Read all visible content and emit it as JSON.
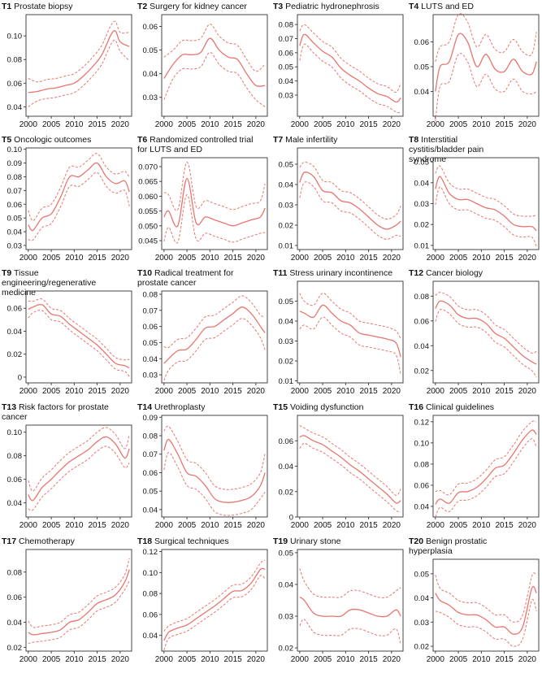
{
  "colors": {
    "line": "#e8756e",
    "axis": "#333333",
    "text": "#111111"
  },
  "chart_data": [
    {
      "code": "T1",
      "title": "Prostate biopsy",
      "type": "line",
      "x": [
        2000,
        2002,
        2004,
        2006,
        2008,
        2010,
        2012,
        2014,
        2016,
        2018,
        2019,
        2020,
        2022
      ],
      "mean": [
        0.052,
        0.053,
        0.055,
        0.056,
        0.058,
        0.06,
        0.066,
        0.074,
        0.084,
        0.101,
        0.104,
        0.095,
        0.091
      ],
      "band": 0.008,
      "yticks": [
        0.04,
        0.06,
        0.08,
        0.1
      ],
      "xticks": [
        2000,
        2005,
        2010,
        2015,
        2020
      ],
      "ylim": [
        0.032,
        0.118
      ]
    },
    {
      "code": "T2",
      "title": "Surgery for kidney cancer",
      "type": "line",
      "x": [
        2000,
        2002,
        2004,
        2006,
        2008,
        2010,
        2012,
        2014,
        2016,
        2018,
        2020,
        2022
      ],
      "mean": [
        0.038,
        0.044,
        0.048,
        0.048,
        0.049,
        0.055,
        0.05,
        0.047,
        0.046,
        0.04,
        0.035,
        0.035
      ],
      "band": 0.006,
      "yticks": [
        0.03,
        0.04,
        0.05,
        0.06
      ],
      "xticks": [
        2000,
        2005,
        2010,
        2015,
        2020
      ],
      "ylim": [
        0.022,
        0.065
      ]
    },
    {
      "code": "T3",
      "title": "Pediatric hydronephrosis",
      "type": "line",
      "x": [
        2000,
        2001,
        2003,
        2005,
        2007,
        2009,
        2011,
        2013,
        2015,
        2017,
        2019,
        2021,
        2022
      ],
      "mean": [
        0.065,
        0.073,
        0.067,
        0.061,
        0.057,
        0.049,
        0.044,
        0.04,
        0.035,
        0.031,
        0.029,
        0.025,
        0.028
      ],
      "band": 0.007,
      "yticks": [
        0.03,
        0.04,
        0.05,
        0.06,
        0.07,
        0.08
      ],
      "xticks": [
        2000,
        2005,
        2010,
        2015,
        2020
      ],
      "ylim": [
        0.015,
        0.087
      ]
    },
    {
      "code": "T4",
      "title": "LUTS and ED",
      "type": "line",
      "x": [
        2000,
        2001,
        2003,
        2005,
        2007,
        2009,
        2011,
        2013,
        2015,
        2017,
        2019,
        2021,
        2022
      ],
      "mean": [
        0.04,
        0.05,
        0.052,
        0.063,
        0.06,
        0.05,
        0.055,
        0.049,
        0.048,
        0.053,
        0.048,
        0.047,
        0.052
      ],
      "band": 0.008,
      "yticks": [
        0.04,
        0.05,
        0.06
      ],
      "xticks": [
        2000,
        2005,
        2010,
        2015,
        2020
      ],
      "ylim": [
        0.03,
        0.071
      ]
    },
    {
      "code": "T5",
      "title": "Oncologic outcomes",
      "type": "line",
      "x": [
        2000,
        2001,
        2003,
        2005,
        2007,
        2009,
        2011,
        2013,
        2015,
        2017,
        2019,
        2021,
        2022
      ],
      "mean": [
        0.045,
        0.041,
        0.05,
        0.053,
        0.065,
        0.08,
        0.08,
        0.085,
        0.09,
        0.08,
        0.075,
        0.077,
        0.069
      ],
      "band": 0.007,
      "yticks": [
        0.03,
        0.04,
        0.05,
        0.06,
        0.07,
        0.08,
        0.09,
        0.1
      ],
      "xticks": [
        2000,
        2005,
        2010,
        2015,
        2020
      ],
      "ylim": [
        0.027,
        0.101
      ]
    },
    {
      "code": "T6",
      "title": "Randomized controlled trial for LUTS and ED",
      "type": "line",
      "x": [
        2000,
        2001,
        2003,
        2005,
        2007,
        2009,
        2011,
        2013,
        2015,
        2017,
        2019,
        2021,
        2022
      ],
      "mean": [
        0.053,
        0.055,
        0.05,
        0.066,
        0.051,
        0.053,
        0.052,
        0.051,
        0.05,
        0.051,
        0.052,
        0.053,
        0.056
      ],
      "band": 0.0055,
      "yticks": [
        0.045,
        0.05,
        0.055,
        0.06,
        0.065,
        0.07
      ],
      "xticks": [
        2000,
        2005,
        2010,
        2015,
        2020
      ],
      "ylim": [
        0.042,
        0.073
      ]
    },
    {
      "code": "T7",
      "title": "Male infertility",
      "type": "line",
      "x": [
        2000,
        2001,
        2003,
        2005,
        2007,
        2009,
        2011,
        2013,
        2015,
        2017,
        2019,
        2021,
        2022
      ],
      "mean": [
        0.041,
        0.046,
        0.044,
        0.037,
        0.036,
        0.032,
        0.031,
        0.028,
        0.024,
        0.02,
        0.018,
        0.02,
        0.022
      ],
      "band": 0.005,
      "yticks": [
        0.01,
        0.02,
        0.03,
        0.04,
        0.05
      ],
      "xticks": [
        2000,
        2005,
        2010,
        2015,
        2020
      ],
      "ylim": [
        0.008,
        0.058
      ]
    },
    {
      "code": "T8",
      "title": "Interstitial cystitis/bladder pain syndrome",
      "type": "line",
      "x": [
        2000,
        2001,
        2003,
        2005,
        2007,
        2009,
        2011,
        2013,
        2015,
        2017,
        2019,
        2021,
        2022
      ],
      "mean": [
        0.037,
        0.043,
        0.035,
        0.032,
        0.032,
        0.03,
        0.028,
        0.027,
        0.024,
        0.02,
        0.019,
        0.019,
        0.017
      ],
      "band": 0.005,
      "yticks": [
        0.01,
        0.02,
        0.03,
        0.04,
        0.05
      ],
      "xticks": [
        2000,
        2005,
        2010,
        2015,
        2020
      ],
      "ylim": [
        0.008,
        0.052
      ]
    },
    {
      "code": "T9",
      "title": "Tissue engineering/regenerative medicine",
      "type": "line",
      "x": [
        2000,
        2001,
        2003,
        2005,
        2007,
        2009,
        2011,
        2013,
        2015,
        2017,
        2019,
        2021,
        2022
      ],
      "mean": [
        0.059,
        0.061,
        0.063,
        0.055,
        0.053,
        0.046,
        0.04,
        0.034,
        0.028,
        0.02,
        0.012,
        0.01,
        0.008
      ],
      "band": 0.005,
      "yticks": [
        0,
        0.02,
        0.04,
        0.06
      ],
      "xticks": [
        2000,
        2005,
        2010,
        2015,
        2020
      ],
      "ylim": [
        -0.005,
        0.075
      ]
    },
    {
      "code": "T10",
      "title": "Radical treatment for prostate cancer",
      "type": "line",
      "x": [
        2000,
        2001,
        2003,
        2005,
        2007,
        2009,
        2011,
        2013,
        2015,
        2017,
        2019,
        2021,
        2022
      ],
      "mean": [
        0.037,
        0.04,
        0.045,
        0.046,
        0.052,
        0.059,
        0.06,
        0.064,
        0.068,
        0.072,
        0.068,
        0.06,
        0.056
      ],
      "band": 0.007,
      "yticks": [
        0.03,
        0.04,
        0.05,
        0.06,
        0.07,
        0.08
      ],
      "xticks": [
        2000,
        2005,
        2010,
        2015,
        2020
      ],
      "ylim": [
        0.025,
        0.082
      ]
    },
    {
      "code": "T11",
      "title": "Stress urinary incontinence",
      "type": "line",
      "x": [
        2000,
        2001,
        2003,
        2005,
        2007,
        2009,
        2011,
        2013,
        2015,
        2017,
        2019,
        2021,
        2022
      ],
      "mean": [
        0.045,
        0.044,
        0.042,
        0.048,
        0.044,
        0.04,
        0.038,
        0.034,
        0.033,
        0.032,
        0.031,
        0.029,
        0.022
      ],
      "band": 0.006,
      "yticks": [
        0.01,
        0.02,
        0.03,
        0.04,
        0.05
      ],
      "xticks": [
        2000,
        2005,
        2010,
        2015,
        2020
      ],
      "ylim": [
        0.009,
        0.06
      ]
    },
    {
      "code": "T12",
      "title": "Cancer biology",
      "type": "line",
      "x": [
        2000,
        2001,
        2003,
        2005,
        2007,
        2009,
        2011,
        2013,
        2015,
        2017,
        2019,
        2021,
        2022
      ],
      "mean": [
        0.07,
        0.076,
        0.073,
        0.065,
        0.062,
        0.062,
        0.058,
        0.05,
        0.046,
        0.039,
        0.032,
        0.027,
        0.025
      ],
      "band": 0.007,
      "yticks": [
        0.02,
        0.04,
        0.06,
        0.08
      ],
      "xticks": [
        2000,
        2005,
        2010,
        2015,
        2020
      ],
      "ylim": [
        0.01,
        0.092
      ]
    },
    {
      "code": "T13",
      "title": "Risk factors for prostate cancer",
      "type": "line",
      "x": [
        2000,
        2001,
        2003,
        2005,
        2007,
        2009,
        2011,
        2013,
        2015,
        2017,
        2019,
        2021,
        2022
      ],
      "mean": [
        0.047,
        0.042,
        0.053,
        0.06,
        0.068,
        0.075,
        0.08,
        0.085,
        0.092,
        0.096,
        0.09,
        0.078,
        0.086
      ],
      "band": 0.008,
      "yticks": [
        0.04,
        0.06,
        0.08,
        0.1
      ],
      "xticks": [
        2000,
        2005,
        2010,
        2015,
        2020
      ],
      "ylim": [
        0.028,
        0.106
      ]
    },
    {
      "code": "T14",
      "title": "Urethroplasty",
      "type": "line",
      "x": [
        2000,
        2001,
        2003,
        2005,
        2007,
        2009,
        2011,
        2013,
        2015,
        2017,
        2019,
        2021,
        2022
      ],
      "mean": [
        0.072,
        0.078,
        0.07,
        0.06,
        0.058,
        0.053,
        0.046,
        0.044,
        0.044,
        0.045,
        0.047,
        0.053,
        0.06
      ],
      "band": 0.007,
      "yticks": [
        0.04,
        0.05,
        0.06,
        0.07,
        0.08,
        0.09
      ],
      "xticks": [
        2000,
        2005,
        2010,
        2015,
        2020
      ],
      "ylim": [
        0.036,
        0.091
      ]
    },
    {
      "code": "T15",
      "title": "Voiding dysfunction",
      "type": "line",
      "x": [
        2000,
        2001,
        2003,
        2005,
        2007,
        2009,
        2011,
        2013,
        2015,
        2017,
        2019,
        2021,
        2022
      ],
      "mean": [
        0.063,
        0.064,
        0.06,
        0.057,
        0.052,
        0.047,
        0.041,
        0.036,
        0.03,
        0.024,
        0.018,
        0.011,
        0.013
      ],
      "band": 0.006,
      "yticks": [
        0,
        0.02,
        0.04,
        0.06
      ],
      "xticks": [
        2000,
        2005,
        2010,
        2015,
        2020
      ],
      "ylim": [
        0,
        0.08
      ]
    },
    {
      "code": "T16",
      "title": "Clinical guidelines",
      "type": "line",
      "x": [
        2000,
        2001,
        2003,
        2005,
        2007,
        2009,
        2011,
        2013,
        2015,
        2017,
        2019,
        2021,
        2022
      ],
      "mean": [
        0.042,
        0.047,
        0.043,
        0.053,
        0.054,
        0.058,
        0.066,
        0.076,
        0.079,
        0.09,
        0.103,
        0.112,
        0.108
      ],
      "band": 0.008,
      "yticks": [
        0.04,
        0.06,
        0.08,
        0.1,
        0.12
      ],
      "xticks": [
        2000,
        2005,
        2010,
        2015,
        2020
      ],
      "ylim": [
        0.03,
        0.126
      ]
    },
    {
      "code": "T17",
      "title": "Chemotherapy",
      "type": "line",
      "x": [
        2000,
        2001,
        2003,
        2005,
        2007,
        2009,
        2011,
        2013,
        2015,
        2017,
        2019,
        2021,
        2022
      ],
      "mean": [
        0.032,
        0.03,
        0.031,
        0.032,
        0.034,
        0.04,
        0.042,
        0.048,
        0.055,
        0.058,
        0.062,
        0.072,
        0.082
      ],
      "band": 0.006,
      "yticks": [
        0.02,
        0.04,
        0.06,
        0.08
      ],
      "xticks": [
        2000,
        2005,
        2010,
        2015,
        2020
      ],
      "ylim": [
        0.017,
        0.098
      ]
    },
    {
      "code": "T18",
      "title": "Surgical techniques",
      "type": "line",
      "x": [
        2000,
        2001,
        2003,
        2005,
        2007,
        2009,
        2011,
        2013,
        2015,
        2017,
        2019,
        2021,
        2022
      ],
      "mean": [
        0.035,
        0.043,
        0.047,
        0.05,
        0.056,
        0.062,
        0.068,
        0.075,
        0.082,
        0.083,
        0.09,
        0.103,
        0.103
      ],
      "band": 0.006,
      "yticks": [
        0.04,
        0.06,
        0.08,
        0.1,
        0.12
      ],
      "xticks": [
        2000,
        2005,
        2010,
        2015,
        2020
      ],
      "ylim": [
        0.025,
        0.122
      ]
    },
    {
      "code": "T19",
      "title": "Urinary stone",
      "type": "line",
      "x": [
        2000,
        2001,
        2003,
        2005,
        2007,
        2009,
        2011,
        2013,
        2015,
        2017,
        2019,
        2021,
        2022
      ],
      "mean": [
        0.036,
        0.035,
        0.031,
        0.03,
        0.03,
        0.03,
        0.032,
        0.032,
        0.031,
        0.03,
        0.03,
        0.032,
        0.03
      ],
      "band": 0.006,
      "yticks": [
        0.02,
        0.03,
        0.04,
        0.05
      ],
      "xticks": [
        2000,
        2005,
        2010,
        2015,
        2020
      ],
      "ylim": [
        0.019,
        0.051
      ]
    },
    {
      "code": "T20",
      "title": "Benign prostatic hyperplasia",
      "type": "line",
      "x": [
        2000,
        2001,
        2003,
        2005,
        2007,
        2009,
        2011,
        2013,
        2015,
        2017,
        2019,
        2021,
        2022
      ],
      "mean": [
        0.042,
        0.039,
        0.037,
        0.034,
        0.033,
        0.033,
        0.031,
        0.028,
        0.028,
        0.025,
        0.028,
        0.044,
        0.042
      ],
      "band": 0.005,
      "yticks": [
        0.02,
        0.03,
        0.04,
        0.05
      ],
      "xticks": [
        2000,
        2005,
        2010,
        2015,
        2020
      ],
      "ylim": [
        0.018,
        0.056
      ]
    }
  ]
}
